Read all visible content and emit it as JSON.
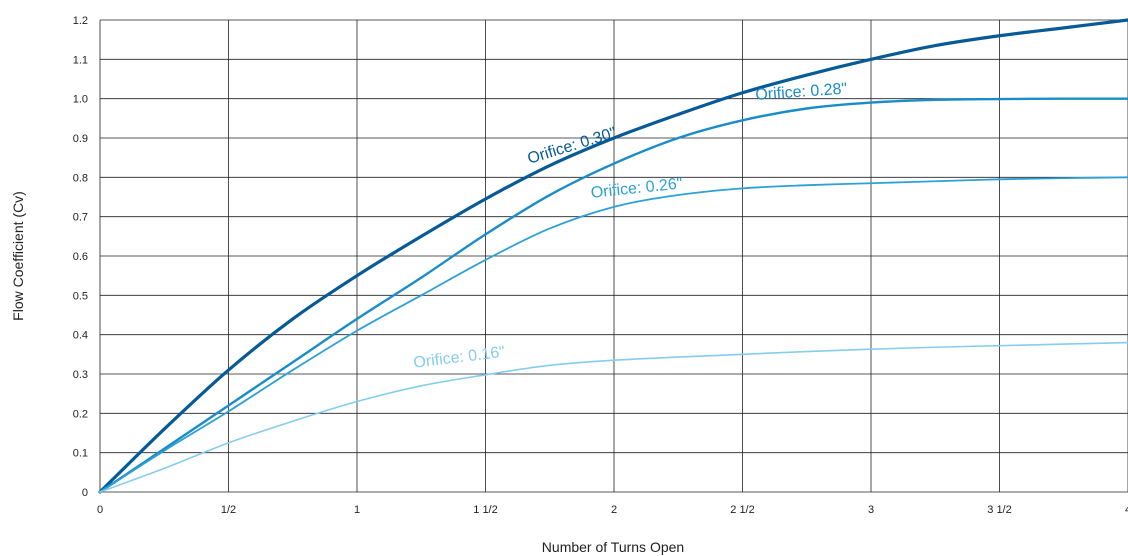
{
  "chart_data": {
    "type": "line",
    "xlabel": "Number of Turns Open",
    "ylabel": "Flow Coefficient (Cv)",
    "xlim": [
      0,
      4
    ],
    "ylim": [
      0,
      1.2
    ],
    "grid": true,
    "x_ticks": [
      {
        "value": 0,
        "label": "0"
      },
      {
        "value": 0.5,
        "label": "1/2"
      },
      {
        "value": 1,
        "label": "1"
      },
      {
        "value": 1.5,
        "label": "1 1/2"
      },
      {
        "value": 2,
        "label": "2"
      },
      {
        "value": 2.5,
        "label": "2 1/2"
      },
      {
        "value": 3,
        "label": "3"
      },
      {
        "value": 3.5,
        "label": "3 1/2"
      },
      {
        "value": 4,
        "label": "4"
      }
    ],
    "y_ticks": [
      {
        "value": 0,
        "label": "0"
      },
      {
        "value": 0.1,
        "label": "0.1"
      },
      {
        "value": 0.2,
        "label": "0.2"
      },
      {
        "value": 0.3,
        "label": "0.3"
      },
      {
        "value": 0.4,
        "label": "0.4"
      },
      {
        "value": 0.5,
        "label": "0.5"
      },
      {
        "value": 0.6,
        "label": "0.6"
      },
      {
        "value": 0.7,
        "label": "0.7"
      },
      {
        "value": 0.8,
        "label": "0.8"
      },
      {
        "value": 0.9,
        "label": "0.9"
      },
      {
        "value": 1.0,
        "label": "1.0"
      },
      {
        "value": 1.1,
        "label": "1.1"
      },
      {
        "value": 1.2,
        "label": "1.2"
      }
    ],
    "series": [
      {
        "name": "Orifice: 0.30\".",
        "color": "#065a96",
        "label_position": {
          "x": 1.85,
          "y": 0.87,
          "angle": -17
        },
        "x": [
          0,
          0.25,
          0.5,
          0.75,
          1.0,
          1.25,
          1.5,
          1.75,
          2.0,
          2.25,
          2.5,
          2.75,
          3.0,
          3.25,
          3.5,
          3.75,
          4.0
        ],
        "y": [
          0,
          0.16,
          0.31,
          0.44,
          0.55,
          0.65,
          0.745,
          0.83,
          0.9,
          0.96,
          1.015,
          1.06,
          1.1,
          1.135,
          1.16,
          1.18,
          1.2
        ]
      },
      {
        "name": "Orifice: 0.28\"",
        "color": "#1a8cc8",
        "label_position": {
          "x": 2.73,
          "y": 1.005,
          "angle": -4
        },
        "x": [
          0,
          0.25,
          0.5,
          0.75,
          1.0,
          1.25,
          1.5,
          1.75,
          2.0,
          2.25,
          2.5,
          2.75,
          3.0,
          3.25,
          3.5,
          3.75,
          4.0
        ],
        "y": [
          0,
          0.11,
          0.22,
          0.33,
          0.44,
          0.545,
          0.655,
          0.755,
          0.835,
          0.9,
          0.945,
          0.975,
          0.99,
          0.997,
          0.999,
          1.0,
          1.0
        ]
      },
      {
        "name": "Orifice: 0.26\"",
        "color": "#2da0d6",
        "label_position": {
          "x": 2.09,
          "y": 0.76,
          "angle": -6
        },
        "x": [
          0,
          0.25,
          0.5,
          0.75,
          1.0,
          1.25,
          1.5,
          1.75,
          2.0,
          2.25,
          2.5,
          2.75,
          3.0,
          3.25,
          3.5,
          3.75,
          4.0
        ],
        "y": [
          0,
          0.105,
          0.205,
          0.31,
          0.41,
          0.5,
          0.59,
          0.67,
          0.725,
          0.755,
          0.772,
          0.78,
          0.785,
          0.79,
          0.795,
          0.798,
          0.8
        ]
      },
      {
        "name": "Orifice: 0.16\"",
        "color": "#84cdee",
        "label_position": {
          "x": 1.4,
          "y": 0.33,
          "angle": -7
        },
        "x": [
          0,
          0.25,
          0.5,
          0.75,
          1.0,
          1.25,
          1.5,
          1.75,
          2.0,
          2.25,
          2.5,
          2.75,
          3.0,
          3.25,
          3.5,
          3.75,
          4.0
        ],
        "y": [
          0,
          0.06,
          0.125,
          0.18,
          0.23,
          0.27,
          0.298,
          0.322,
          0.335,
          0.343,
          0.35,
          0.357,
          0.363,
          0.368,
          0.372,
          0.376,
          0.38
        ]
      }
    ]
  }
}
